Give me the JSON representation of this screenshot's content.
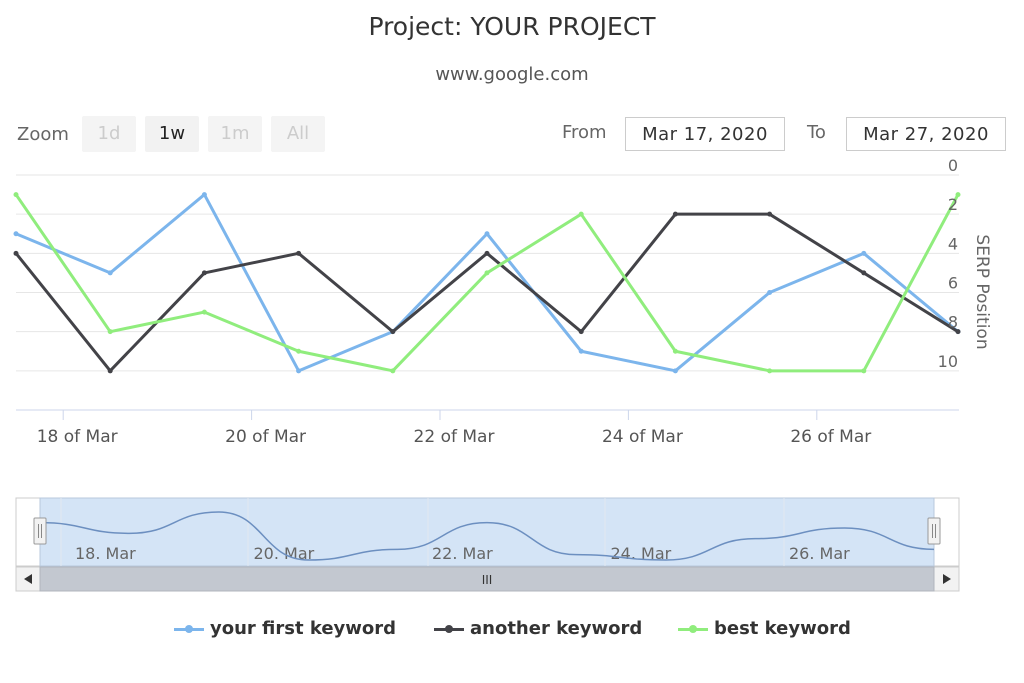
{
  "title": "Project: YOUR PROJECT",
  "subtitle": "www.google.com",
  "range_selector": {
    "zoom_label": "Zoom",
    "buttons": [
      {
        "label": "1d",
        "active": false
      },
      {
        "label": "1w",
        "active": true
      },
      {
        "label": "1m",
        "active": false
      },
      {
        "label": "All",
        "active": false
      }
    ],
    "from_label": "From",
    "from_value": "Mar 17, 2020",
    "to_label": "To",
    "to_value": "Mar 27, 2020"
  },
  "chart_data": {
    "type": "line",
    "title": "Project: YOUR PROJECT",
    "subtitle": "www.google.com",
    "x": [
      "2020-03-17",
      "2020-03-18",
      "2020-03-19",
      "2020-03-20",
      "2020-03-21",
      "2020-03-22",
      "2020-03-23",
      "2020-03-24",
      "2020-03-25",
      "2020-03-26",
      "2020-03-27"
    ],
    "x_ticks": [
      "18 of Mar",
      "20 of Mar",
      "22 of Mar",
      "24 of Mar",
      "26 of Mar"
    ],
    "ylabel": "SERP Position",
    "y_ticks": [
      "0",
      "2",
      "4",
      "6",
      "8",
      "10"
    ],
    "ylim": [
      0,
      12
    ],
    "y_reversed": true,
    "y_axis_position": "right",
    "grid": true,
    "legend_position": "bottom-center",
    "series": [
      {
        "name": "your first keyword",
        "color": "#7cb5ec",
        "values": [
          3,
          5,
          1,
          10,
          8,
          3,
          9,
          10,
          6,
          4,
          8
        ]
      },
      {
        "name": "another keyword",
        "color": "#434348",
        "values": [
          4,
          10,
          5,
          4,
          8,
          4,
          8,
          2,
          2,
          5,
          8
        ]
      },
      {
        "name": "best keyword",
        "color": "#90ed7d",
        "values": [
          1,
          8,
          7,
          9,
          10,
          5,
          2,
          9,
          10,
          10,
          1
        ]
      }
    ]
  },
  "navigator": {
    "labels": [
      "18. Mar",
      "20. Mar",
      "22. Mar",
      "24. Mar",
      "26. Mar"
    ],
    "scroll_grip": "III",
    "handle_grip": "||"
  }
}
